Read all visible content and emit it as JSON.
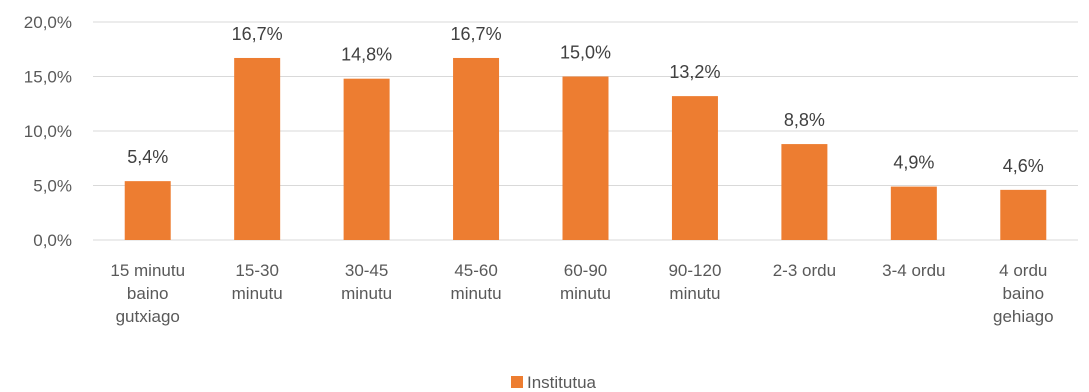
{
  "chart_data": {
    "type": "bar",
    "categories": [
      [
        "15 minutu",
        "baino",
        "gutxiago"
      ],
      [
        "15-30",
        "minutu"
      ],
      [
        "30-45",
        "minutu"
      ],
      [
        "45-60",
        "minutu"
      ],
      [
        "60-90",
        "minutu"
      ],
      [
        "90-120",
        "minutu"
      ],
      [
        "2-3 ordu"
      ],
      [
        "3-4 ordu"
      ],
      [
        "4 ordu",
        "baino",
        "gehiago"
      ]
    ],
    "series": [
      {
        "name": "Institutua",
        "values": [
          5.4,
          16.7,
          14.8,
          16.7,
          15.0,
          13.2,
          8.8,
          4.9,
          4.6
        ],
        "labels": [
          "5,4%",
          "16,7%",
          "14,8%",
          "16,7%",
          "15,0%",
          "13,2%",
          "8,8%",
          "4,9%",
          "4,6%"
        ],
        "color": "#ED7D31"
      }
    ],
    "yticks": [
      0,
      5,
      10,
      15,
      20
    ],
    "ytick_labels": [
      "0,0%",
      "5,0%",
      "10,0%",
      "15,0%",
      "20,0%"
    ],
    "ylim": [
      0,
      20
    ],
    "grid": true,
    "legend": "bottom-center",
    "gridline_color": "#D9D9D9"
  }
}
